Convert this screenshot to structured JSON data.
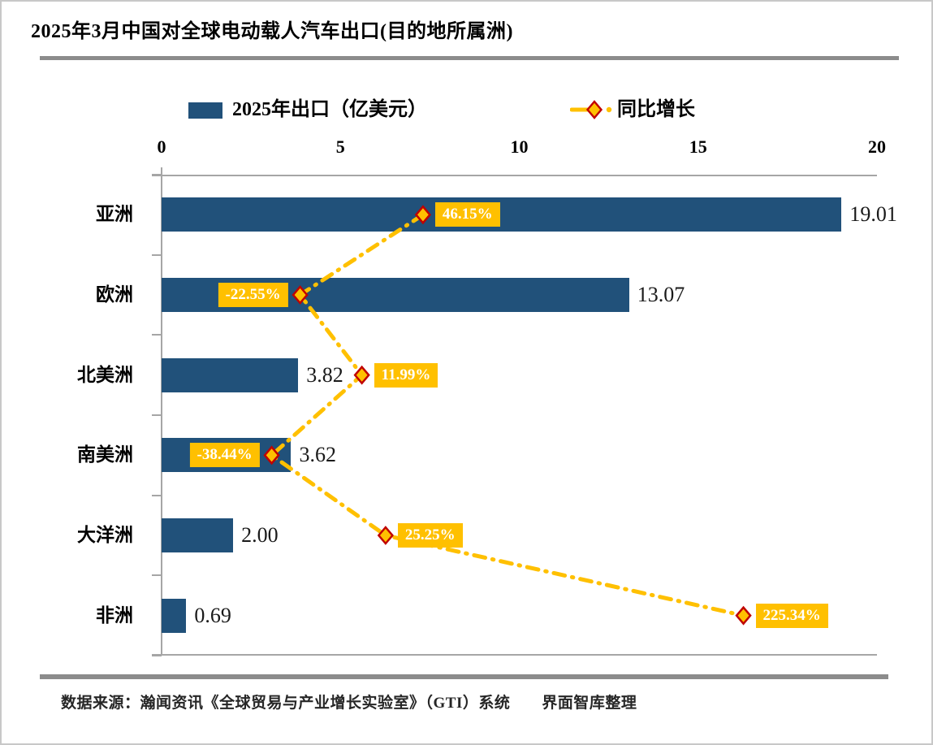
{
  "page": {
    "source_note": "数据来源：瀚闻资讯《全球贸易与产业增长实验室》（GTI）系统　　界面智库整理"
  },
  "chart_data": {
    "type": "bar",
    "subtype": "horizontal-bar-with-growth-line",
    "title": "2025年3月中国对全球电动载人汽车出口(目的地所属洲)",
    "categories": [
      "亚洲",
      "欧洲",
      "北美洲",
      "南美洲",
      "大洋洲",
      "非洲"
    ],
    "series": [
      {
        "name": "2025年出口（亿美元）",
        "type": "bar",
        "values": [
          19.01,
          13.07,
          3.82,
          3.62,
          2.0,
          0.69
        ],
        "value_labels": [
          "19.01",
          "13.07",
          "3.82",
          "3.62",
          "2.00",
          "0.69"
        ],
        "xlim": [
          0,
          20
        ]
      },
      {
        "name": "同比增长",
        "type": "line",
        "values": [
          46.15,
          -22.55,
          11.99,
          -38.44,
          25.25,
          225.34
        ],
        "value_labels": [
          "46.15%",
          "-22.55%",
          "11.99%",
          "-38.44%",
          "25.25%",
          "225.34%"
        ],
        "label_side": [
          "right",
          "left",
          "right",
          "left",
          "right",
          "right"
        ],
        "xlim": [
          -100,
          300
        ]
      }
    ],
    "xticks": [
      "0",
      "5",
      "10",
      "15",
      "20"
    ],
    "axis_position": "top",
    "grid": false,
    "legend_position": "top",
    "colors": {
      "bar": "#21517A",
      "line": "#FFC000",
      "marker_fill": "#FFC000",
      "marker_stroke": "#C00000",
      "label_bg": "#FFC000",
      "label_text": "#FFFFFF",
      "axis_line": "#A6A6A6",
      "separator": "#8C8C8C",
      "text": "#000000"
    }
  }
}
